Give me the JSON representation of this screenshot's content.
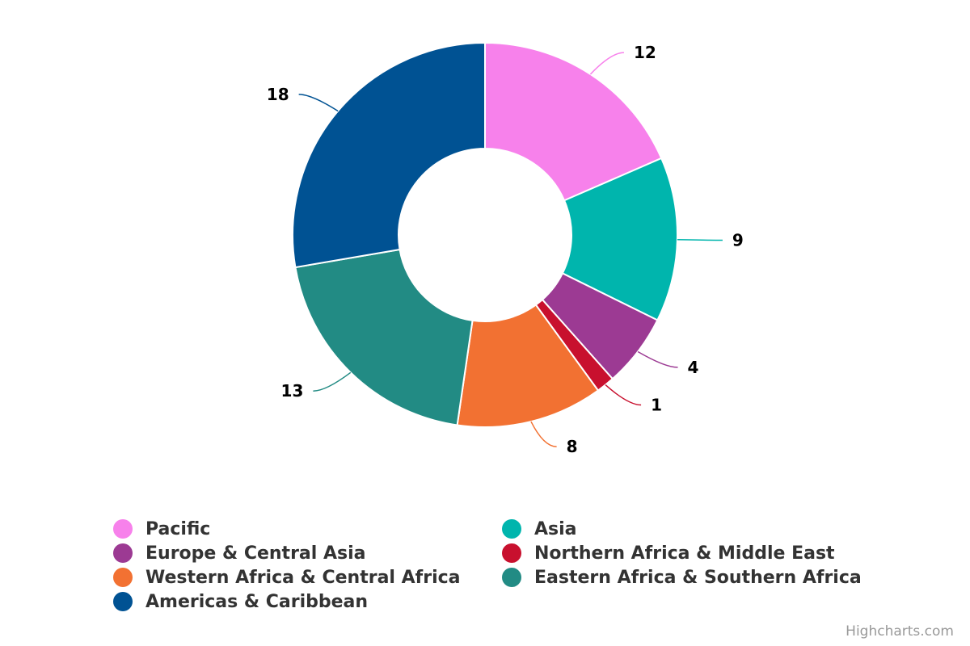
{
  "chart_data": {
    "type": "pie",
    "variant": "donut",
    "series": [
      {
        "name": "Pacific",
        "value": 12,
        "color": "#f781eb"
      },
      {
        "name": "Asia",
        "value": 9,
        "color": "#00b5ad"
      },
      {
        "name": "Europe & Central Asia",
        "value": 4,
        "color": "#9c3a93"
      },
      {
        "name": "Northern Africa & Middle East",
        "value": 1,
        "color": "#c8102e"
      },
      {
        "name": "Western Africa & Central Africa",
        "value": 8,
        "color": "#f27132"
      },
      {
        "name": "Eastern Africa & Southern Africa",
        "value": 13,
        "color": "#228b84"
      },
      {
        "name": "Americas & Caribbean",
        "value": 18,
        "color": "#005293"
      }
    ],
    "legend_placement": "bottom"
  },
  "credits": "Highcharts.com"
}
